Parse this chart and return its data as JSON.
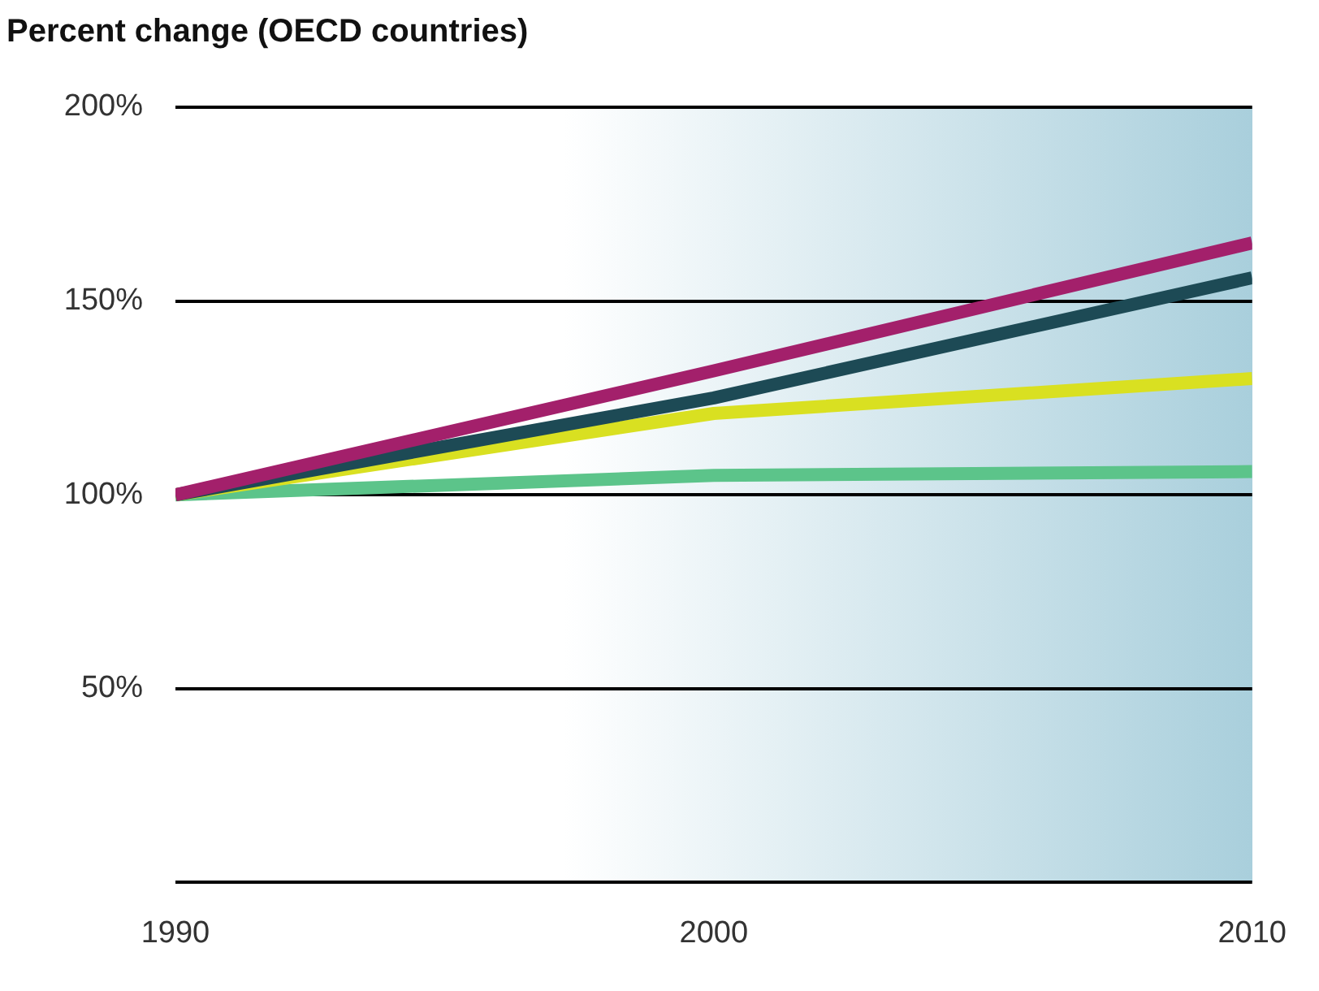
{
  "chart_data": {
    "type": "line",
    "title": "Percent change (OECD countries)",
    "x": [
      1990,
      2000,
      2010
    ],
    "series": [
      {
        "color": "#a3206b",
        "values": [
          100,
          132,
          165
        ]
      },
      {
        "color": "#1d4a55",
        "values": [
          100,
          125,
          156
        ]
      },
      {
        "color": "#d9e021",
        "values": [
          100,
          121,
          130
        ]
      },
      {
        "color": "#5cc48a",
        "values": [
          100,
          105,
          106
        ]
      }
    ],
    "xlim": [
      1990,
      2010
    ],
    "xticks": [
      1990,
      2000,
      2010
    ],
    "ylim": [
      0,
      200
    ],
    "yticks": [
      {
        "value": 0,
        "label": null
      },
      {
        "value": 50,
        "label": "50%"
      },
      {
        "value": 100,
        "label": "100%"
      },
      {
        "value": 150,
        "label": "150%"
      },
      {
        "value": 200,
        "label": "200%"
      }
    ],
    "grid": "y",
    "legend": false,
    "marker": "none",
    "line_style": "solid"
  }
}
